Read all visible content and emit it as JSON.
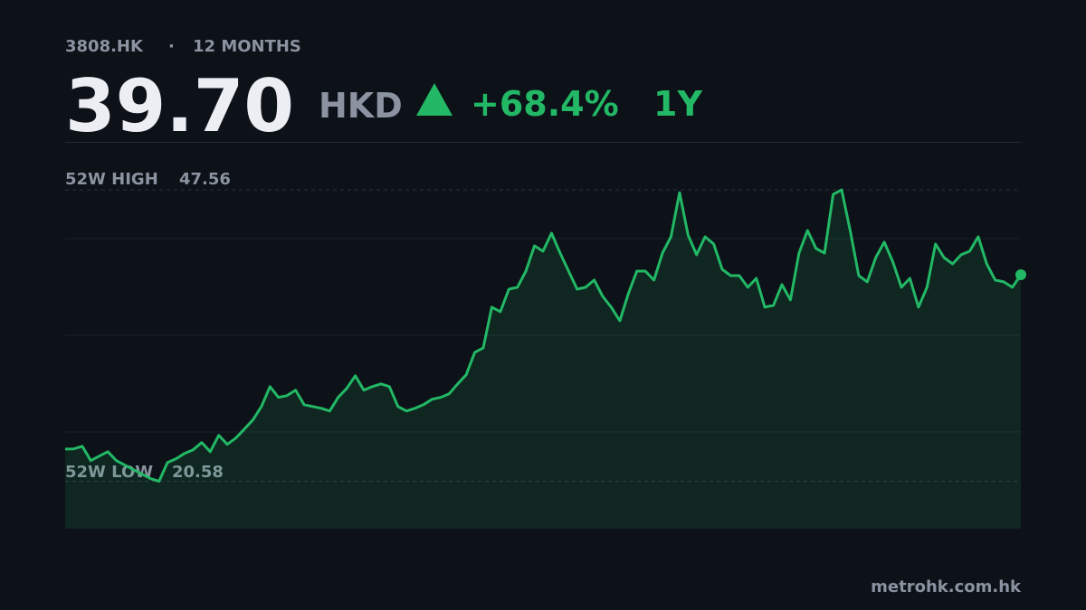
{
  "chart_data": {
    "type": "line",
    "ticker": "3808.HK",
    "separator": "·",
    "period": "12 MONTHS",
    "price": "39.70",
    "currency": "HKD",
    "change": "+68.4%",
    "range_label": "1Y",
    "high": {
      "label": "52W HIGH",
      "value": 47.56
    },
    "low": {
      "label": "52W LOW",
      "value": 20.58
    },
    "source": "metrohk.com.hk",
    "color": "#22b865",
    "ylim": [
      16.2,
      52.0
    ],
    "values": [
      23.57,
      23.59,
      23.83,
      22.5,
      22.92,
      23.33,
      22.5,
      22.08,
      21.66,
      21.25,
      20.83,
      20.58,
      22.33,
      22.67,
      23.17,
      23.5,
      24.17,
      23.33,
      24.84,
      24.0,
      24.59,
      25.42,
      26.26,
      27.51,
      29.35,
      28.35,
      28.51,
      29.02,
      27.68,
      27.51,
      27.34,
      27.09,
      28.35,
      29.18,
      30.35,
      29.02,
      29.35,
      29.6,
      29.35,
      27.51,
      27.09,
      27.34,
      27.68,
      28.18,
      28.35,
      28.68,
      29.6,
      30.44,
      32.52,
      32.94,
      36.7,
      36.28,
      38.37,
      38.54,
      40.04,
      42.38,
      41.88,
      43.55,
      41.71,
      40.04,
      38.37,
      38.54,
      39.21,
      37.7,
      36.7,
      35.45,
      37.95,
      40.04,
      40.04,
      39.21,
      41.71,
      43.22,
      47.3,
      43.38,
      41.55,
      43.22,
      42.55,
      40.21,
      39.62,
      39.62,
      38.54,
      39.37,
      36.7,
      36.87,
      38.79,
      37.37,
      41.71,
      43.8,
      42.13,
      41.71,
      47.14,
      47.56,
      43.8,
      39.62,
      39.04,
      41.29,
      42.72,
      40.88,
      38.54,
      39.37,
      36.7,
      38.54,
      42.55,
      41.29,
      40.71,
      41.55,
      41.88,
      43.22,
      40.71,
      39.21,
      39.04,
      38.54,
      39.7
    ]
  }
}
